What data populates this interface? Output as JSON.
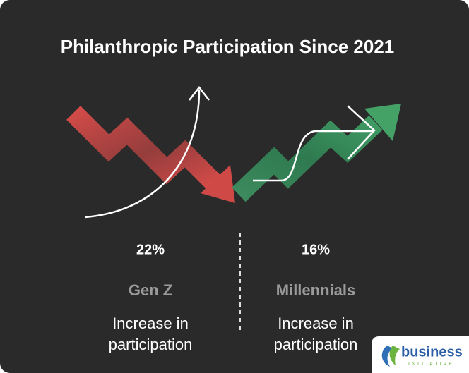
{
  "title": "Philanthropic Participation Since 2021",
  "stats": [
    {
      "value": "22%",
      "label": "Gen Z",
      "description": [
        "Increase in",
        "participation"
      ]
    },
    {
      "value": "16%",
      "label": "Millennials",
      "description": [
        "Increase in",
        "participation"
      ]
    }
  ],
  "logo": {
    "name": "business",
    "tagline": "INITIATIVE"
  }
}
